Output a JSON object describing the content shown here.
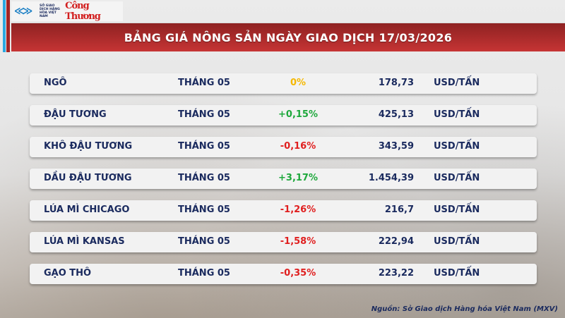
{
  "logo": {
    "sgd_text": "SỞ GIAO DỊCH HÀNG HÓA VIỆT NAM",
    "brand": "Công Thương"
  },
  "title": "BẢNG GIÁ NÔNG SẢN NGÀY GIAO DỊCH 17/03/2026",
  "colors": {
    "up": "#1ea83c",
    "down": "#e01f1f",
    "flat": "#f5b800",
    "text": "#1a2a5e",
    "header": "#b02c2c"
  },
  "rows": [
    {
      "name": "NGÔ",
      "month": "THÁNG 05",
      "change": "0%",
      "trend": "flat",
      "value": "178,73",
      "unit": "USD/TẤN"
    },
    {
      "name": "ĐẬU TƯƠNG",
      "month": "THÁNG 05",
      "change": "+0,15%",
      "trend": "up",
      "value": "425,13",
      "unit": "USD/TẤN"
    },
    {
      "name": "KHÔ ĐẬU TƯƠNG",
      "month": "THÁNG 05",
      "change": "-0,16%",
      "trend": "down",
      "value": "343,59",
      "unit": "USD/TẤN"
    },
    {
      "name": "DẦU ĐẬU TƯƠNG",
      "month": "THÁNG 05",
      "change": "+3,17%",
      "trend": "up",
      "value": "1.454,39",
      "unit": "USD/TẤN"
    },
    {
      "name": "LÚA MÌ CHICAGO",
      "month": "THÁNG 05",
      "change": "-1,26%",
      "trend": "down",
      "value": "216,7",
      "unit": "USD/TẤN"
    },
    {
      "name": "LÚA MÌ KANSAS",
      "month": "THÁNG 05",
      "change": "-1,58%",
      "trend": "down",
      "value": "222,94",
      "unit": "USD/TẤN"
    },
    {
      "name": "GẠO THÔ",
      "month": "THÁNG 05",
      "change": "-0,35%",
      "trend": "down",
      "value": "223,22",
      "unit": "USD/TẤN"
    }
  ],
  "source": "Nguồn: Sở Giao dịch Hàng hóa Việt Nam (MXV)"
}
